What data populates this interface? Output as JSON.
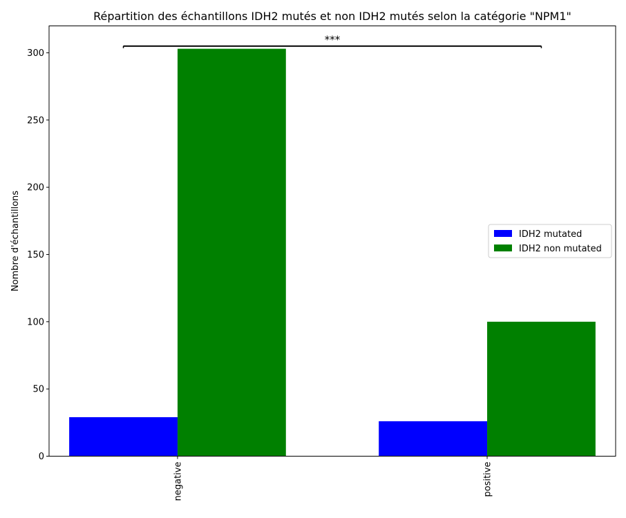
{
  "chart_data": {
    "type": "bar",
    "title": "Répartition des échantillons IDH2 mutés et non IDH2 mutés selon la catégorie \"NPM1\"",
    "xlabel": "",
    "ylabel": "Nombre d'échantillons",
    "categories": [
      "negative",
      "positive"
    ],
    "series": [
      {
        "name": "IDH2 mutated",
        "color": "#0000ff",
        "values": [
          29,
          26
        ]
      },
      {
        "name": "IDH2 non mutated",
        "color": "#008000",
        "values": [
          303,
          100
        ]
      }
    ],
    "ylim": [
      0,
      320
    ],
    "yticks": [
      0,
      50,
      100,
      150,
      200,
      250,
      300
    ],
    "grid": false,
    "legend_position": "center-right",
    "annotation": {
      "text": "***",
      "between": [
        "negative",
        "positive"
      ],
      "y": 305
    }
  }
}
